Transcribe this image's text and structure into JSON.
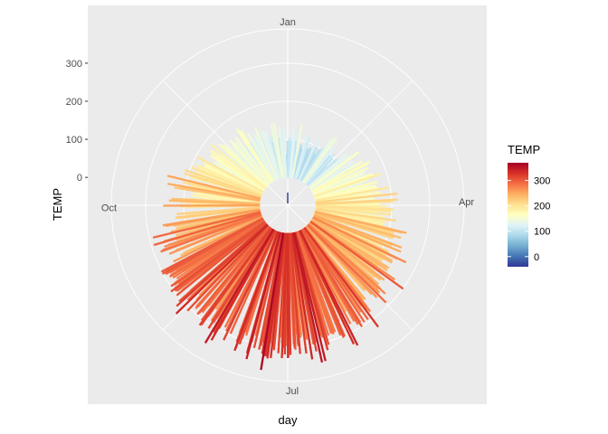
{
  "chart_data": {
    "type": "polar-bar",
    "xlabel": "day",
    "ylabel": "TEMP",
    "theta_labels": [
      {
        "label": "Jan",
        "day": 1
      },
      {
        "label": "Apr",
        "day": 91
      },
      {
        "label": "Jul",
        "day": 182
      },
      {
        "label": "Oct",
        "day": 274
      }
    ],
    "y_ticks": [
      0,
      100,
      200,
      300
    ],
    "y_range": [
      -40,
      390
    ],
    "days_in_cycle": 365,
    "legend": {
      "title": "TEMP",
      "ticks": [
        0,
        100,
        200,
        300
      ],
      "range": [
        -40,
        370
      ],
      "colors": [
        "#313695",
        "#4575b4",
        "#74add1",
        "#abd9e9",
        "#e0f3f8",
        "#ffffbf",
        "#fee090",
        "#fdae61",
        "#f46d43",
        "#d73027",
        "#a50026"
      ]
    },
    "colors": {
      "panel_bg": "#ebebeb",
      "grid": "#ffffff"
    },
    "seasonal_profile": {
      "day_of_min": 15,
      "mean_at_min": 80,
      "mean_at_max": 300,
      "spread": 70
    }
  }
}
